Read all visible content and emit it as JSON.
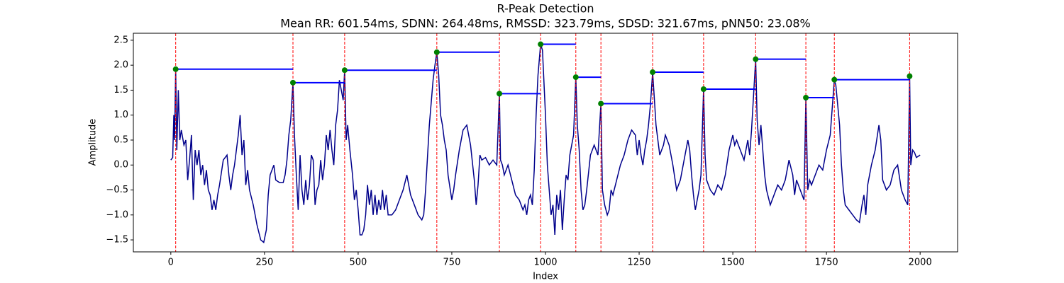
{
  "chart_data": {
    "type": "line",
    "title": "R-Peak Detection",
    "subtitle": "Mean RR: 601.54ms, SDNN: 264.48ms, RMSSD: 323.79ms, SDSD: 321.67ms, pNN50: 23.08%",
    "xlabel": "Index",
    "ylabel": "Amplitude",
    "xlim": [
      -100,
      2100
    ],
    "ylim": [
      -1.74,
      2.64
    ],
    "xticks": [
      0,
      250,
      500,
      750,
      1000,
      1250,
      1500,
      1750,
      2000
    ],
    "yticks": [
      {
        "value": -1.5,
        "label": "−1.5"
      },
      {
        "value": -1,
        "label": "−1.0"
      },
      {
        "value": -0.5,
        "label": "−0.5"
      },
      {
        "value": 0,
        "label": "0.0"
      },
      0.5,
      {
        "value": 1,
        "label": "1.0"
      },
      1.5,
      {
        "value": 2,
        "label": "2.0"
      },
      2.5
    ],
    "grid": false,
    "peak_line_color": "red",
    "interval_color": "blue",
    "series": [
      {
        "color": "#00008b",
        "x": [
          0,
          5,
          8,
          10,
          13,
          16,
          20,
          24,
          28,
          35,
          40,
          45,
          50,
          55,
          60,
          65,
          70,
          75,
          80,
          85,
          90,
          95,
          100,
          105,
          110,
          115,
          120,
          125,
          130,
          140,
          150,
          155,
          160,
          165,
          170,
          180,
          185,
          190,
          195,
          200,
          205,
          210,
          220,
          230,
          240,
          248,
          255,
          260,
          265,
          270,
          275,
          280,
          290,
          300,
          305,
          310,
          315,
          320,
          326,
          330,
          335,
          340,
          345,
          350,
          355,
          360,
          365,
          370,
          375,
          380,
          385,
          390,
          395,
          400,
          405,
          410,
          415,
          420,
          425,
          430,
          435,
          440,
          445,
          450,
          455,
          460,
          464,
          468,
          472,
          478,
          485,
          490,
          495,
          500,
          505,
          510,
          515,
          520,
          525,
          530,
          535,
          540,
          545,
          550,
          555,
          560,
          565,
          570,
          575,
          580,
          590,
          600,
          610,
          620,
          630,
          640,
          650,
          660,
          670,
          675,
          680,
          690,
          700,
          705,
          710,
          715,
          720,
          725,
          730,
          735,
          740,
          750,
          755,
          760,
          770,
          780,
          790,
          800,
          810,
          815,
          820,
          825,
          830,
          840,
          850,
          860,
          870,
          877,
          880,
          885,
          890,
          900,
          910,
          920,
          930,
          940,
          945,
          950,
          955,
          960,
          965,
          970,
          975,
          980,
          987,
          992,
          1000,
          1005,
          1010,
          1015,
          1020,
          1025,
          1030,
          1035,
          1040,
          1045,
          1050,
          1055,
          1060,
          1065,
          1070,
          1075,
          1081,
          1085,
          1090,
          1095,
          1100,
          1105,
          1110,
          1120,
          1130,
          1140,
          1148,
          1152,
          1158,
          1165,
          1170,
          1175,
          1180,
          1190,
          1200,
          1210,
          1220,
          1230,
          1240,
          1245,
          1250,
          1255,
          1260,
          1265,
          1270,
          1275,
          1280,
          1286,
          1290,
          1295,
          1300,
          1305,
          1310,
          1315,
          1320,
          1330,
          1340,
          1350,
          1360,
          1370,
          1380,
          1385,
          1390,
          1395,
          1400,
          1410,
          1415,
          1422,
          1426,
          1430,
          1440,
          1450,
          1460,
          1470,
          1480,
          1490,
          1500,
          1505,
          1510,
          1520,
          1530,
          1540,
          1545,
          1550,
          1561,
          1565,
          1570,
          1575,
          1580,
          1585,
          1590,
          1600,
          1610,
          1620,
          1630,
          1640,
          1650,
          1660,
          1665,
          1670,
          1680,
          1690,
          1695,
          1700,
          1705,
          1710,
          1720,
          1730,
          1740,
          1750,
          1760,
          1771,
          1775,
          1780,
          1785,
          1790,
          1795,
          1800,
          1810,
          1820,
          1830,
          1838,
          1845,
          1850,
          1855,
          1860,
          1870,
          1880,
          1890,
          1895,
          1900,
          1910,
          1920,
          1930,
          1940,
          1950,
          1960,
          1967,
          1972,
          1975,
          1980,
          1985,
          1990,
          2000
        ],
        "values": [
          0.1,
          0.15,
          1.0,
          0.5,
          1.92,
          0.3,
          1.5,
          0.5,
          0.7,
          0.4,
          0.5,
          -0.3,
          0.1,
          0.6,
          -0.7,
          0.3,
          0.0,
          0.3,
          -0.2,
          0.0,
          -0.4,
          -0.1,
          -0.5,
          -0.6,
          -0.9,
          -0.7,
          -0.9,
          -0.6,
          -0.4,
          0.1,
          0.2,
          -0.2,
          -0.5,
          -0.2,
          0.0,
          0.6,
          1.0,
          0.2,
          0.5,
          -0.4,
          -0.1,
          -0.5,
          -0.8,
          -1.2,
          -1.5,
          -1.55,
          -1.3,
          -0.6,
          -0.2,
          -0.1,
          0.0,
          -0.3,
          -0.35,
          -0.35,
          -0.2,
          0.1,
          0.6,
          0.9,
          1.65,
          0.6,
          -0.2,
          -0.9,
          0.2,
          -0.5,
          -0.8,
          -0.3,
          -0.7,
          -0.4,
          0.2,
          0.1,
          -0.8,
          -0.5,
          -0.4,
          0.1,
          -0.3,
          0.0,
          0.6,
          0.3,
          0.7,
          0.3,
          0.0,
          0.8,
          1.1,
          1.7,
          1.5,
          1.3,
          1.9,
          0.5,
          0.8,
          0.3,
          -0.2,
          -0.7,
          -0.5,
          -0.9,
          -1.4,
          -1.4,
          -1.3,
          -1.0,
          -0.4,
          -0.8,
          -0.5,
          -1.0,
          -0.6,
          -1.0,
          -0.7,
          -0.9,
          -0.5,
          -0.9,
          -0.6,
          -1.0,
          -1.0,
          -0.9,
          -0.7,
          -0.5,
          -0.2,
          -0.6,
          -0.8,
          -1.0,
          -1.1,
          -1.0,
          -0.5,
          0.8,
          1.7,
          2.0,
          2.26,
          1.8,
          1.0,
          0.8,
          0.5,
          0.3,
          -0.2,
          -0.7,
          -0.5,
          -0.2,
          0.3,
          0.7,
          0.8,
          0.4,
          -0.3,
          -0.8,
          -0.4,
          0.2,
          0.1,
          0.15,
          0.0,
          0.1,
          0.0,
          1.43,
          0.1,
          0.0,
          -0.2,
          0.0,
          -0.3,
          -0.6,
          -0.7,
          -0.9,
          -0.8,
          -1.0,
          -0.7,
          -0.6,
          -0.8,
          -0.1,
          1.0,
          1.8,
          2.42,
          2.3,
          1.0,
          0.0,
          -0.5,
          -1.0,
          -0.8,
          -1.4,
          -0.6,
          -0.9,
          -0.5,
          -1.3,
          -0.7,
          -0.2,
          -0.3,
          0.2,
          0.4,
          0.6,
          1.76,
          0.8,
          0.3,
          -0.5,
          -0.9,
          -0.8,
          -0.5,
          0.2,
          0.4,
          0.2,
          1.23,
          -0.5,
          -0.8,
          -1.0,
          -0.9,
          -0.5,
          -0.6,
          -0.3,
          0.0,
          0.2,
          0.5,
          0.7,
          0.6,
          0.2,
          0.5,
          0.2,
          0.0,
          0.3,
          0.5,
          0.8,
          1.2,
          1.86,
          1.4,
          0.8,
          0.5,
          0.2,
          0.3,
          0.4,
          0.6,
          0.4,
          0.0,
          -0.5,
          -0.3,
          0.1,
          0.5,
          0.3,
          -0.2,
          -0.6,
          -0.9,
          -0.5,
          -0.2,
          1.52,
          0.2,
          -0.3,
          -0.5,
          -0.6,
          -0.4,
          -0.5,
          -0.2,
          0.3,
          0.6,
          0.4,
          0.5,
          0.3,
          0.1,
          0.5,
          0.2,
          0.7,
          2.12,
          0.9,
          0.4,
          0.8,
          0.3,
          -0.2,
          -0.5,
          -0.8,
          -0.6,
          -0.4,
          -0.5,
          -0.3,
          0.1,
          -0.2,
          -0.6,
          -0.3,
          -0.5,
          -0.7,
          1.35,
          -0.5,
          -0.3,
          -0.4,
          -0.2,
          0.0,
          -0.1,
          0.3,
          0.6,
          1.71,
          1.6,
          1.2,
          0.8,
          0.0,
          -0.5,
          -0.8,
          -0.9,
          -1.0,
          -1.1,
          -1.15,
          -0.8,
          -0.6,
          -1.0,
          -0.4,
          0.0,
          0.3,
          0.8,
          0.5,
          -0.3,
          -0.5,
          -0.4,
          -0.1,
          0.0,
          -0.5,
          -0.7,
          -0.8,
          1.78,
          0.0,
          0.3,
          0.25,
          0.15,
          0.2
        ]
      },
      {
        "color": "green",
        "marker": "circle",
        "x": [
          13,
          326,
          464,
          710,
          877,
          987,
          1081,
          1148,
          1286,
          1422,
          1561,
          1695,
          1771,
          1972
        ],
        "values": [
          1.92,
          1.65,
          1.9,
          2.26,
          1.43,
          2.42,
          1.76,
          1.23,
          1.86,
          1.52,
          2.12,
          1.35,
          1.71,
          1.78
        ]
      }
    ]
  }
}
